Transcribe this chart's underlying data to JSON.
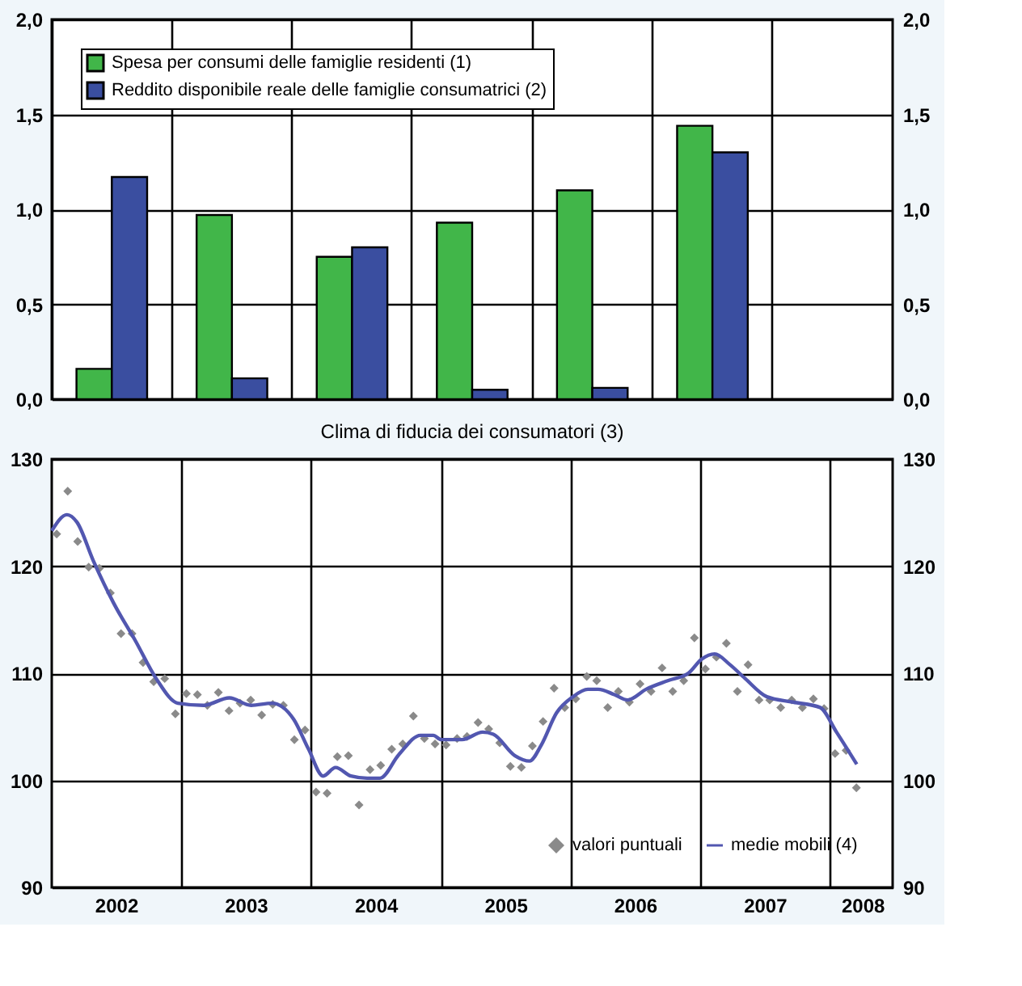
{
  "chart_data": [
    {
      "type": "bar",
      "categories": [
        "2002",
        "2003",
        "2004",
        "2005",
        "2006",
        "2007",
        "2008"
      ],
      "series": [
        {
          "name": "Spesa per consumi delle famiglie residenti (1)",
          "color": "#41b649",
          "values": [
            0.16,
            0.97,
            0.75,
            0.93,
            1.1,
            1.44,
            null
          ]
        },
        {
          "name": "Reddito disponibile reale delle famiglie consumatrici (2)",
          "color": "#3a4ea0",
          "values": [
            1.17,
            0.11,
            0.8,
            0.05,
            0.06,
            1.3,
            null
          ]
        }
      ],
      "ylim": [
        0,
        2
      ],
      "yticks": [
        {
          "value": 0,
          "label": "0,0"
        },
        {
          "value": 0.5,
          "label": "0,5"
        },
        {
          "value": 1,
          "label": "1,0"
        },
        {
          "value": 1.5,
          "label": "1,5"
        },
        {
          "value": 2,
          "label": "2,0"
        }
      ],
      "y2lim": [
        0,
        2
      ],
      "y2ticks": [
        {
          "value": 0,
          "label": "0,0"
        },
        {
          "value": 0.5,
          "label": "0,5"
        },
        {
          "value": 1,
          "label": "1,0"
        },
        {
          "value": 1.5,
          "label": "1,5"
        },
        {
          "value": 2,
          "label": "2,0"
        }
      ],
      "grid": true,
      "legend": "top left",
      "tick_labels": "y"
    },
    {
      "type": "scatter",
      "title": "Clima di fiducia dei consumatori (3)",
      "x": [
        "2002-01-15",
        "2002-02-15",
        "2002-03-15",
        "2002-04-15",
        "2002-05-15",
        "2002-06-15",
        "2002-07-15",
        "2002-08-15",
        "2002-09-15",
        "2002-10-15",
        "2002-11-15",
        "2002-12-15",
        "2003-01-15",
        "2003-02-15",
        "2003-03-15",
        "2003-04-15",
        "2003-05-15",
        "2003-06-15",
        "2003-07-15",
        "2003-08-15",
        "2003-09-15",
        "2003-10-15",
        "2003-11-15",
        "2003-12-15",
        "2004-01-15",
        "2004-02-15",
        "2004-03-15",
        "2004-04-15",
        "2004-05-15",
        "2004-06-15",
        "2004-07-15",
        "2004-08-15",
        "2004-09-15",
        "2004-10-15",
        "2004-11-15",
        "2004-12-15",
        "2005-01-15",
        "2005-02-15",
        "2005-03-15",
        "2005-04-15",
        "2005-05-15",
        "2005-06-15",
        "2005-07-15",
        "2005-08-15",
        "2005-09-15",
        "2005-10-15",
        "2005-11-15",
        "2005-12-15",
        "2006-01-15",
        "2006-02-15",
        "2006-03-15",
        "2006-04-15",
        "2006-05-15",
        "2006-06-15",
        "2006-07-15",
        "2006-08-15",
        "2006-09-15",
        "2006-10-15",
        "2006-11-15",
        "2006-12-15",
        "2007-01-15",
        "2007-02-15",
        "2007-03-15",
        "2007-04-15",
        "2007-05-15",
        "2007-06-15",
        "2007-07-15",
        "2007-08-15",
        "2007-09-15",
        "2007-10-15",
        "2007-11-15",
        "2007-12-15",
        "2008-01-15",
        "2008-02-15",
        "2008-03-15"
      ],
      "series": [
        {
          "name": "valori puntuali",
          "color": "#8a8a8a",
          "marker": "diamond",
          "values": [
            123.0,
            127.0,
            122.3,
            119.9,
            119.8,
            117.5,
            113.7,
            113.7,
            111.0,
            109.2,
            109.5,
            106.2,
            108.1,
            108.0,
            107.0,
            108.2,
            106.5,
            107.2,
            107.5,
            106.1,
            107.1,
            107.0,
            103.8,
            104.7,
            98.9,
            98.8,
            102.2,
            102.3,
            97.7,
            101.0,
            101.4,
            102.9,
            103.4,
            106.0,
            103.9,
            103.4,
            103.3,
            103.9,
            104.1,
            105.4,
            104.8,
            103.5,
            101.3,
            101.2,
            103.2,
            105.5,
            108.6,
            106.8,
            107.6,
            109.7,
            109.3,
            106.8,
            108.3,
            107.3,
            109.0,
            108.3,
            110.5,
            108.3,
            109.3,
            113.3,
            110.4,
            111.5,
            112.8,
            108.3,
            110.8,
            107.5,
            107.5,
            106.8,
            107.5,
            106.8,
            107.6,
            106.7,
            102.5,
            102.8,
            99.3
          ]
        },
        {
          "name": "medie mobili (4)",
          "type": "line",
          "color": "#5257b0",
          "marker": "none",
          "line_style": "solid",
          "x": [
            "2002-01-01",
            "2002-02-13",
            "2002-03-13",
            "2002-04-28",
            "2002-06-25",
            "2002-08-25",
            "2002-10-22",
            "2002-12-22",
            "2003-03-04",
            "2003-05-16",
            "2003-07-16",
            "2003-09-13",
            "2003-11-13",
            "2003-12-25",
            "2004-02-04",
            "2004-03-10",
            "2004-04-22",
            "2004-06-07",
            "2004-07-13",
            "2004-09-04",
            "2004-11-04",
            "2004-12-10",
            "2005-01-01",
            "2005-03-01",
            "2005-04-28",
            "2005-05-28",
            "2005-07-28",
            "2005-09-07",
            "2005-10-10",
            "2005-11-22",
            "2006-01-07",
            "2006-02-18",
            "2006-03-19",
            "2006-05-04",
            "2006-06-10",
            "2006-08-01",
            "2006-10-01",
            "2006-11-28",
            "2007-01-04",
            "2007-02-10",
            "2007-03-25",
            "2007-05-07",
            "2007-07-07",
            "2007-09-19",
            "2007-12-04",
            "2008-01-19",
            "2008-03-16"
          ],
          "values": [
            123.3,
            124.8,
            124.1,
            120.5,
            116.5,
            113.0,
            109.5,
            107.2,
            107.0,
            107.7,
            107.0,
            107.2,
            105.7,
            102.9,
            100.4,
            101.2,
            100.4,
            100.2,
            100.2,
            102.4,
            104.2,
            104.2,
            103.8,
            103.8,
            104.5,
            104.3,
            102.3,
            101.8,
            103.3,
            106.3,
            107.8,
            108.5,
            108.5,
            108.0,
            107.5,
            108.5,
            109.3,
            110.0,
            111.3,
            111.8,
            110.8,
            109.5,
            107.8,
            107.3,
            106.8,
            104.5,
            101.5
          ]
        }
      ],
      "xlim": [
        "2002-01-01",
        "2008-06-25"
      ],
      "xticks": [
        {
          "value": "2002-07-01",
          "label": "2002"
        },
        {
          "value": "2003-01-01",
          "label": null
        },
        {
          "value": "2003-07-01",
          "label": "2003"
        },
        {
          "value": "2004-01-01",
          "label": null
        },
        {
          "value": "2004-07-01",
          "label": "2004"
        },
        {
          "value": "2005-01-01",
          "label": null
        },
        {
          "value": "2005-07-01",
          "label": "2005"
        },
        {
          "value": "2006-01-01",
          "label": null
        },
        {
          "value": "2006-07-01",
          "label": "2006"
        },
        {
          "value": "2007-01-01",
          "label": null
        },
        {
          "value": "2007-07-01",
          "label": "2007"
        },
        {
          "value": "2008-01-01",
          "label": null
        },
        {
          "value": "2008-04-01",
          "label": "2008"
        }
      ],
      "ylim": [
        90,
        130
      ],
      "yticks": [
        90,
        100,
        110,
        120,
        130
      ],
      "y2lim": [
        90,
        130
      ],
      "y2ticks": [
        90,
        100,
        110,
        120,
        130
      ],
      "grid": true,
      "legend": "bottom right"
    }
  ]
}
